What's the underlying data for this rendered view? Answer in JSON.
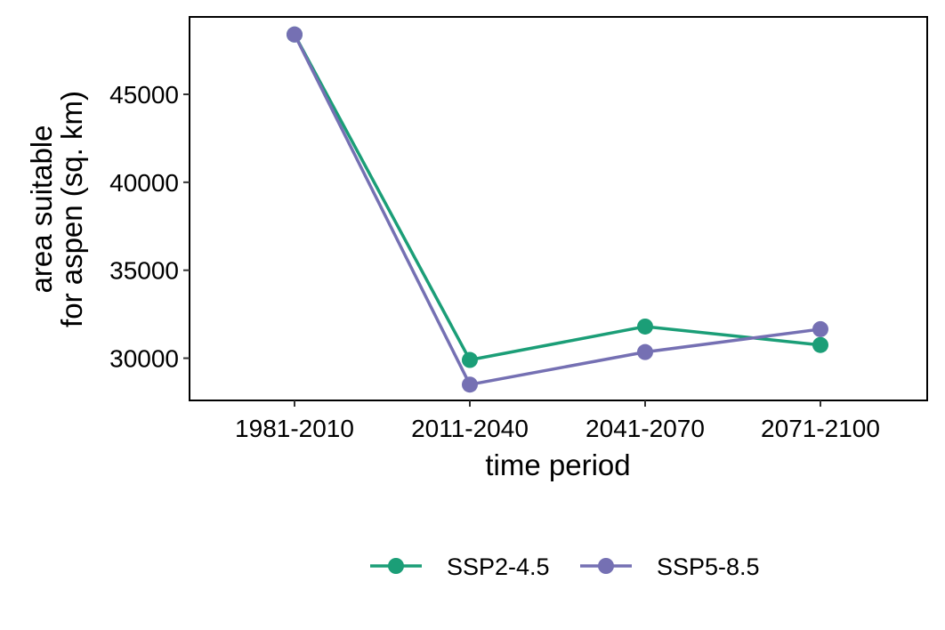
{
  "chart_data": {
    "type": "line",
    "categories": [
      "1981-2010",
      "2011-2040",
      "2041-2070",
      "2071-2100"
    ],
    "series": [
      {
        "name": "SSP2-4.5",
        "color": "#1b9e77",
        "values": [
          48400,
          29900,
          31800,
          30750
        ]
      },
      {
        "name": "SSP5-8.5",
        "color": "#7570b3",
        "values": [
          48400,
          28500,
          30350,
          31650
        ]
      }
    ],
    "xlabel": "time period",
    "ylabel_lines": [
      "area suitable",
      "for aspen (sq. km)"
    ],
    "yticks": [
      30000,
      35000,
      40000,
      45000
    ],
    "ytick_labels": [
      "30000",
      "35000",
      "40000",
      "45000"
    ],
    "ylim": [
      27600,
      49400
    ],
    "grid": false,
    "legend_position": "bottom"
  }
}
